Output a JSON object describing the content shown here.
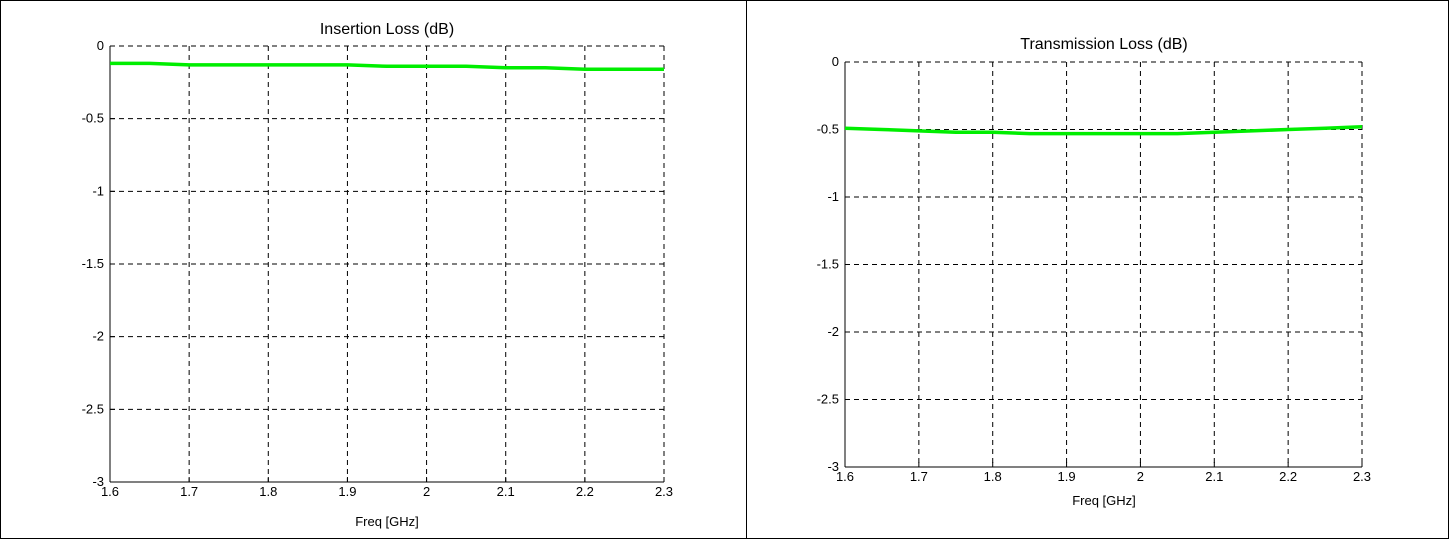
{
  "chart_data": [
    {
      "type": "line",
      "title": "Insertion Loss (dB)",
      "xlabel": "Freq [GHz]",
      "ylabel": "",
      "xlim": [
        1.6,
        2.3
      ],
      "ylim": [
        -3,
        0
      ],
      "xticks": [
        1.6,
        1.7,
        1.8,
        1.9,
        2.0,
        2.1,
        2.2,
        2.3
      ],
      "xtick_labels": [
        "1.6",
        "1.7",
        "1.8",
        "1.9",
        "2",
        "2.1",
        "2.2",
        "2.3"
      ],
      "yticks": [
        0,
        -0.5,
        -1,
        -1.5,
        -2,
        -2.5,
        -3
      ],
      "ytick_labels": [
        "0",
        "-0.5",
        "-1",
        "-1.5",
        "-2",
        "-2.5",
        "-3"
      ],
      "grid": true,
      "series_color": "#00ee00",
      "series": [
        {
          "x": [
            1.6,
            1.65,
            1.7,
            1.75,
            1.8,
            1.85,
            1.9,
            1.95,
            2.0,
            2.05,
            2.1,
            2.15,
            2.2,
            2.25,
            2.3
          ],
          "y": [
            -0.12,
            -0.12,
            -0.13,
            -0.13,
            -0.13,
            -0.13,
            -0.13,
            -0.14,
            -0.14,
            -0.14,
            -0.15,
            -0.15,
            -0.16,
            -0.16,
            -0.16
          ]
        }
      ]
    },
    {
      "type": "line",
      "title": "Transmission Loss (dB)",
      "xlabel": "Freq [GHz]",
      "ylabel": "",
      "xlim": [
        1.6,
        2.3
      ],
      "ylim": [
        -3,
        0
      ],
      "xticks": [
        1.6,
        1.7,
        1.8,
        1.9,
        2.0,
        2.1,
        2.2,
        2.3
      ],
      "xtick_labels": [
        "1.6",
        "1.7",
        "1.8",
        "1.9",
        "2",
        "2.1",
        "2.2",
        "2.3"
      ],
      "yticks": [
        0,
        -0.5,
        -1,
        -1.5,
        -2,
        -2.5,
        -3
      ],
      "ytick_labels": [
        "0",
        "-0.5",
        "-1",
        "-1.5",
        "-2",
        "-2.5",
        "-3"
      ],
      "grid": true,
      "series_color": "#00ee00",
      "series": [
        {
          "x": [
            1.6,
            1.65,
            1.7,
            1.75,
            1.8,
            1.85,
            1.9,
            1.95,
            2.0,
            2.05,
            2.1,
            2.15,
            2.2,
            2.25,
            2.3
          ],
          "y": [
            -0.49,
            -0.5,
            -0.51,
            -0.52,
            -0.52,
            -0.53,
            -0.53,
            -0.53,
            -0.53,
            -0.53,
            -0.52,
            -0.51,
            -0.5,
            -0.49,
            -0.48
          ]
        }
      ]
    }
  ]
}
